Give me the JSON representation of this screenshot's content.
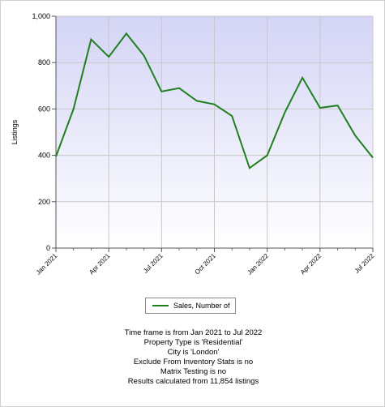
{
  "chart_data": {
    "type": "line",
    "title": "",
    "xlabel": "",
    "ylabel": "Listings",
    "ylim": [
      0,
      1000
    ],
    "yticks": [
      0,
      200,
      400,
      600,
      800,
      1000
    ],
    "ytick_labels": [
      "0",
      "200",
      "400",
      "600",
      "800",
      "1,000"
    ],
    "x": [
      "Jan 2021",
      "Feb 2021",
      "Mar 2021",
      "Apr 2021",
      "May 2021",
      "Jun 2021",
      "Jul 2021",
      "Aug 2021",
      "Sep 2021",
      "Oct 2021",
      "Nov 2021",
      "Dec 2021",
      "Jan 2022",
      "Feb 2022",
      "Mar 2022",
      "Apr 2022",
      "May 2022",
      "Jun 2022",
      "Jul 2022"
    ],
    "xtick_labels": [
      "Jan 2021",
      "Apr 2021",
      "Jul 2021",
      "Oct 2021",
      "Jan 2022",
      "Apr 2022",
      "Jul 2022"
    ],
    "series": [
      {
        "name": "Sales, Number of",
        "color": "#208020",
        "values": [
          395,
          600,
          900,
          825,
          925,
          830,
          675,
          690,
          635,
          620,
          570,
          345,
          400,
          585,
          735,
          605,
          615,
          485,
          390
        ]
      }
    ],
    "grid": true,
    "legend": "bottom"
  },
  "summary": [
    "Time frame is from Jan 2021 to Jul 2022",
    "Property Type is 'Residential'",
    "City is 'London'",
    "Exclude From Inventory Stats is no",
    "Matrix Testing is no",
    "Results calculated from 11,854 listings"
  ],
  "colors": {
    "plot_bg_top": "#d8d8f8",
    "plot_bg_bottom": "#ffffff",
    "line": "#208020"
  }
}
